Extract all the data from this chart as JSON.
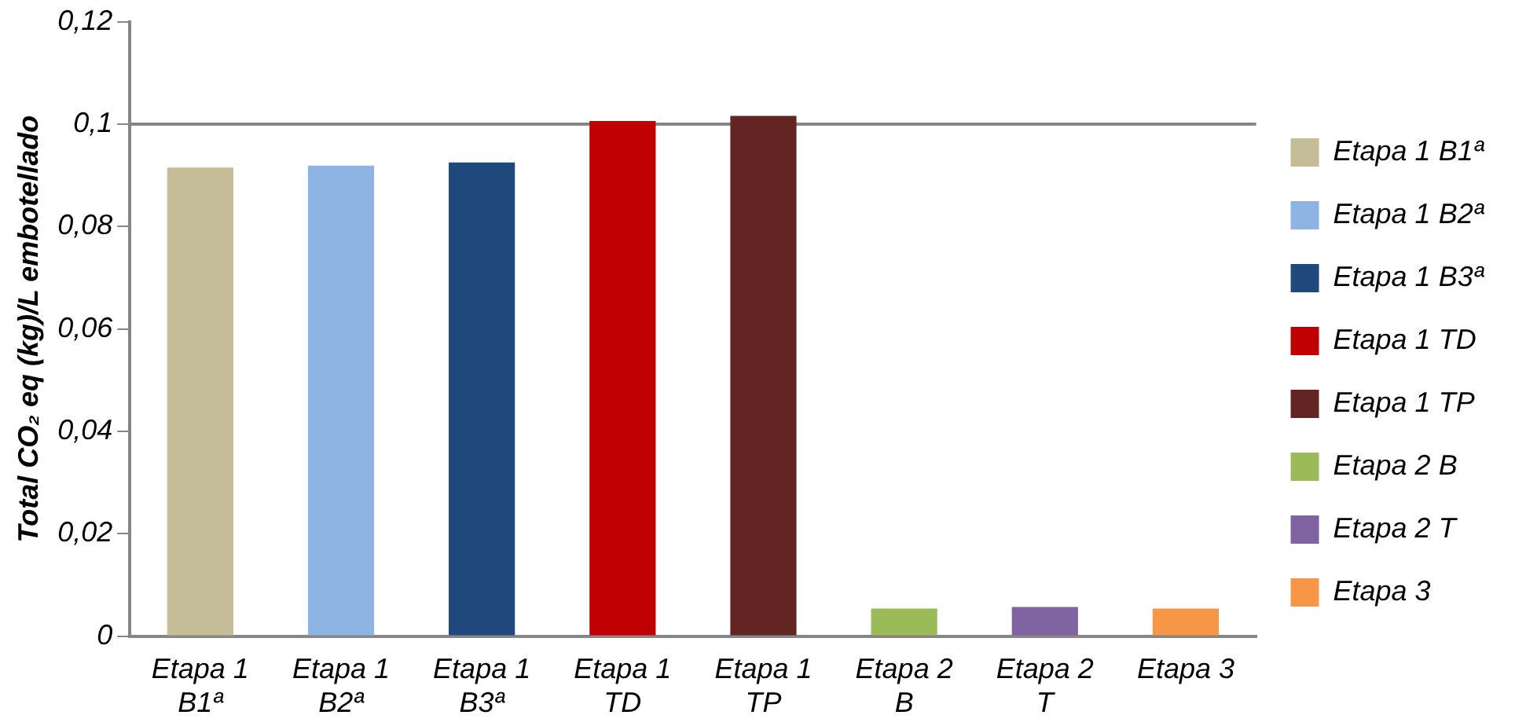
{
  "chart_data": {
    "type": "bar",
    "ylabel": "Total CO₂ eq (kg)/L embotellado",
    "categories": [
      "Etapa 1 B1ª",
      "Etapa 1 B2ª",
      "Etapa 1 B3ª",
      "Etapa 1 TD",
      "Etapa 1 TP",
      "Etapa 2 B",
      "Etapa 2 T",
      "Etapa 3"
    ],
    "series": [
      {
        "name": "Etapa 1 B1ª",
        "color": "#c4bd97",
        "values": [
          0.0915,
          null,
          null,
          null,
          null,
          null,
          null,
          null
        ]
      },
      {
        "name": "Etapa 1 B2ª",
        "color": "#8eb4e3",
        "values": [
          null,
          0.0919,
          null,
          null,
          null,
          null,
          null,
          null
        ]
      },
      {
        "name": "Etapa 1 B3ª",
        "color": "#1f497d",
        "values": [
          null,
          null,
          0.0925,
          null,
          null,
          null,
          null,
          null
        ]
      },
      {
        "name": "Etapa 1 TD",
        "color": "#c00000",
        "values": [
          null,
          null,
          null,
          0.1006,
          null,
          null,
          null,
          null
        ]
      },
      {
        "name": "Etapa 1 TP",
        "color": "#632523",
        "values": [
          null,
          null,
          null,
          null,
          0.1016,
          null,
          null,
          null
        ]
      },
      {
        "name": "Etapa 2 B",
        "color": "#9bbb59",
        "values": [
          null,
          null,
          null,
          null,
          null,
          0.0054,
          null,
          null
        ]
      },
      {
        "name": "Etapa 2 T",
        "color": "#8064a2",
        "values": [
          null,
          null,
          null,
          null,
          null,
          null,
          0.0057,
          null
        ]
      },
      {
        "name": "Etapa 3",
        "color": "#f79646",
        "values": [
          null,
          null,
          null,
          null,
          null,
          null,
          null,
          0.0054
        ]
      }
    ],
    "ylim": [
      0,
      0.12
    ],
    "yticks": [
      {
        "value": 0,
        "label": "0"
      },
      {
        "value": 0.02,
        "label": "0,02"
      },
      {
        "value": 0.04,
        "label": "0,04"
      },
      {
        "value": 0.06,
        "label": "0,06"
      },
      {
        "value": 0.08,
        "label": "0,08"
      },
      {
        "value": 0.1,
        "label": "0,1"
      },
      {
        "value": 0.12,
        "label": "0,12"
      }
    ],
    "ref_lines": [
      {
        "axis": "y",
        "value": 0.1,
        "color": "#868686"
      }
    ],
    "grid": false,
    "legend": "right"
  }
}
